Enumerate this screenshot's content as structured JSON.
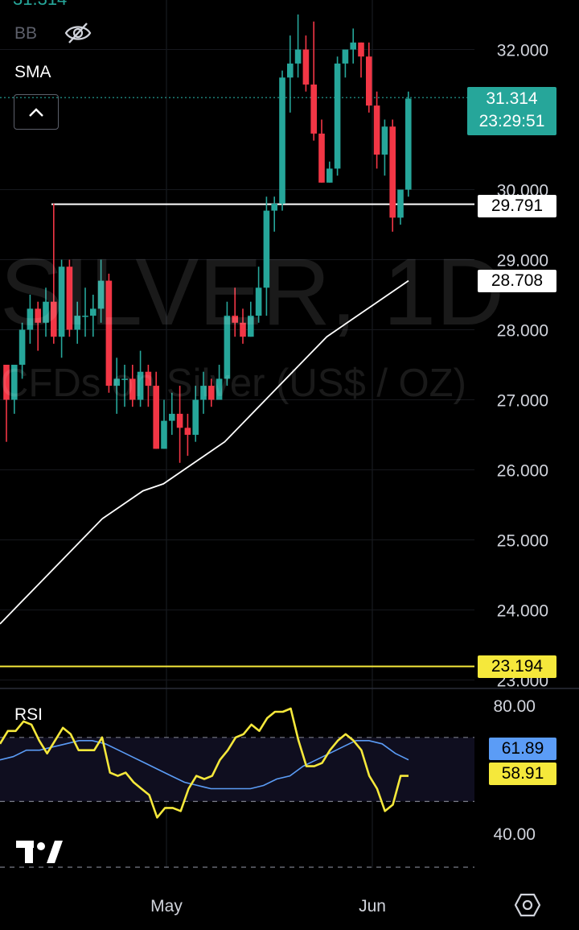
{
  "symbol_watermark": "SILVER, 1D",
  "name_watermark": "CFDs on Silver (US$ / OZ)",
  "top_price_partial": "31.314",
  "indicators": {
    "bb": "BB",
    "sma": "SMA",
    "rsi": "RSI"
  },
  "colors": {
    "up": "#26a69a",
    "down": "#f23645",
    "background": "#000000",
    "rsi_line": "#f5e83b",
    "rsi_ma": "#5b9cf6",
    "sma": "#ffffff",
    "support": "#f5e83b"
  },
  "icons": {
    "visibility": "eye-off-icon",
    "collapse": "chevron-up-icon",
    "settings": "gear-icon",
    "logo": "tradingview-logo"
  },
  "price_tag": {
    "value": "31.314",
    "countdown": "23:29:51"
  },
  "level_tags": {
    "resistance": "29.791",
    "sma": "28.708",
    "support": "23.194"
  },
  "rsi_tags": {
    "ma": "61.89",
    "rsi": "58.91"
  },
  "chart_data": [
    {
      "type": "candlestick",
      "title": "SILVER, 1D",
      "y_ticks": [
        "32.000",
        "30.000",
        "29.000",
        "28.000",
        "27.000",
        "26.000",
        "25.000",
        "24.000",
        "23.000"
      ],
      "y_range": [
        22.8,
        32.7
      ],
      "x_ticks": [
        "May",
        "Jun"
      ],
      "candles": [
        [
          27.5,
          27.0,
          27.0,
          26.4
        ],
        [
          27.0,
          27.5,
          27.5,
          26.8
        ],
        [
          27.5,
          28.0,
          28.1,
          27.3
        ],
        [
          28.0,
          28.3,
          28.5,
          27.8
        ],
        [
          28.3,
          28.1,
          28.4,
          27.7
        ],
        [
          28.1,
          28.4,
          28.6,
          27.9
        ],
        [
          28.4,
          27.9,
          29.8,
          27.8
        ],
        [
          27.9,
          28.9,
          29.0,
          27.6
        ],
        [
          28.9,
          28.0,
          29.0,
          27.9
        ],
        [
          28.0,
          28.2,
          28.4,
          27.8
        ],
        [
          28.2,
          28.2,
          28.6,
          27.9
        ],
        [
          28.2,
          28.3,
          28.5,
          27.9
        ],
        [
          28.3,
          28.7,
          29.0,
          28.1
        ],
        [
          28.7,
          27.2,
          28.8,
          27.1
        ],
        [
          27.2,
          27.3,
          27.6,
          26.8
        ],
        [
          27.3,
          27.3,
          27.5,
          26.9
        ],
        [
          27.3,
          27.0,
          27.5,
          26.9
        ],
        [
          27.0,
          27.4,
          27.7,
          26.9
        ],
        [
          27.4,
          27.2,
          27.5,
          26.9
        ],
        [
          27.2,
          26.3,
          27.4,
          26.3
        ],
        [
          26.3,
          26.7,
          27.0,
          26.3
        ],
        [
          26.7,
          26.8,
          27.1,
          26.5
        ],
        [
          26.8,
          26.6,
          27.2,
          26.1
        ],
        [
          26.6,
          26.5,
          26.8,
          26.2
        ],
        [
          26.5,
          27.0,
          27.2,
          26.4
        ],
        [
          27.0,
          27.2,
          27.4,
          26.8
        ],
        [
          27.2,
          27.0,
          27.3,
          26.9
        ],
        [
          27.0,
          27.3,
          27.5,
          27.0
        ],
        [
          27.3,
          28.2,
          28.4,
          27.2
        ],
        [
          28.2,
          28.1,
          28.6,
          27.9
        ],
        [
          28.1,
          27.9,
          28.3,
          27.8
        ],
        [
          27.9,
          28.2,
          28.4,
          27.9
        ],
        [
          28.2,
          28.6,
          28.9,
          28.1
        ],
        [
          28.6,
          29.7,
          29.9,
          28.2
        ],
        [
          29.7,
          29.8,
          29.9,
          29.4
        ],
        [
          29.8,
          31.6,
          31.7,
          29.7
        ],
        [
          31.6,
          31.8,
          32.2,
          31.1
        ],
        [
          31.8,
          32.0,
          32.5,
          31.6
        ],
        [
          32.0,
          31.5,
          32.2,
          31.4
        ],
        [
          31.5,
          30.8,
          32.4,
          30.7
        ],
        [
          30.8,
          30.1,
          31.0,
          30.1
        ],
        [
          30.1,
          30.3,
          30.4,
          30.1
        ],
        [
          30.3,
          31.8,
          31.9,
          30.2
        ],
        [
          31.8,
          32.0,
          32.0,
          31.6
        ],
        [
          32.0,
          32.1,
          32.3,
          31.8
        ],
        [
          32.1,
          31.9,
          32.1,
          31.6
        ],
        [
          31.9,
          31.2,
          32.1,
          31.1
        ],
        [
          31.2,
          30.5,
          31.4,
          30.3
        ],
        [
          30.5,
          30.9,
          31.0,
          30.2
        ],
        [
          30.9,
          29.6,
          31.0,
          29.4
        ],
        [
          29.6,
          30.0,
          30.0,
          29.5
        ],
        [
          30.0,
          31.3,
          31.4,
          29.9
        ]
      ],
      "sma_line": [
        23.8,
        24.1,
        24.4,
        24.7,
        25.0,
        25.3,
        25.5,
        25.7,
        25.8,
        26.0,
        26.2,
        26.4,
        26.7,
        27.0,
        27.3,
        27.6,
        27.9,
        28.1,
        28.3,
        28.5,
        28.7
      ],
      "horizontal_levels": [
        29.791,
        23.194
      ],
      "last_price": 31.314
    },
    {
      "type": "line",
      "title": "RSI",
      "y_ticks": [
        "80.00",
        "40.00"
      ],
      "y_range": [
        33,
        83
      ],
      "bands": [
        70,
        50
      ],
      "rsi": [
        68,
        72,
        72,
        75,
        74,
        69,
        65,
        69,
        73,
        71,
        66,
        66,
        66,
        70,
        59,
        58,
        59,
        56,
        54,
        52,
        45,
        48,
        48,
        47,
        54,
        58,
        57,
        58,
        63,
        66,
        70,
        71,
        74,
        72,
        76,
        78,
        78,
        79,
        69,
        61,
        61,
        62,
        66,
        69,
        71,
        69,
        66,
        58,
        54,
        47,
        49,
        58,
        58
      ],
      "rsi_ma": [
        63,
        64,
        66,
        66,
        67,
        68,
        69,
        69,
        68,
        66,
        64,
        62,
        60,
        58,
        56,
        55,
        54,
        54,
        54,
        54,
        55,
        57,
        58,
        61,
        63,
        65,
        67,
        69,
        69,
        68,
        65,
        63
      ],
      "last_rsi": 58.91,
      "last_ma": 61.89
    }
  ]
}
